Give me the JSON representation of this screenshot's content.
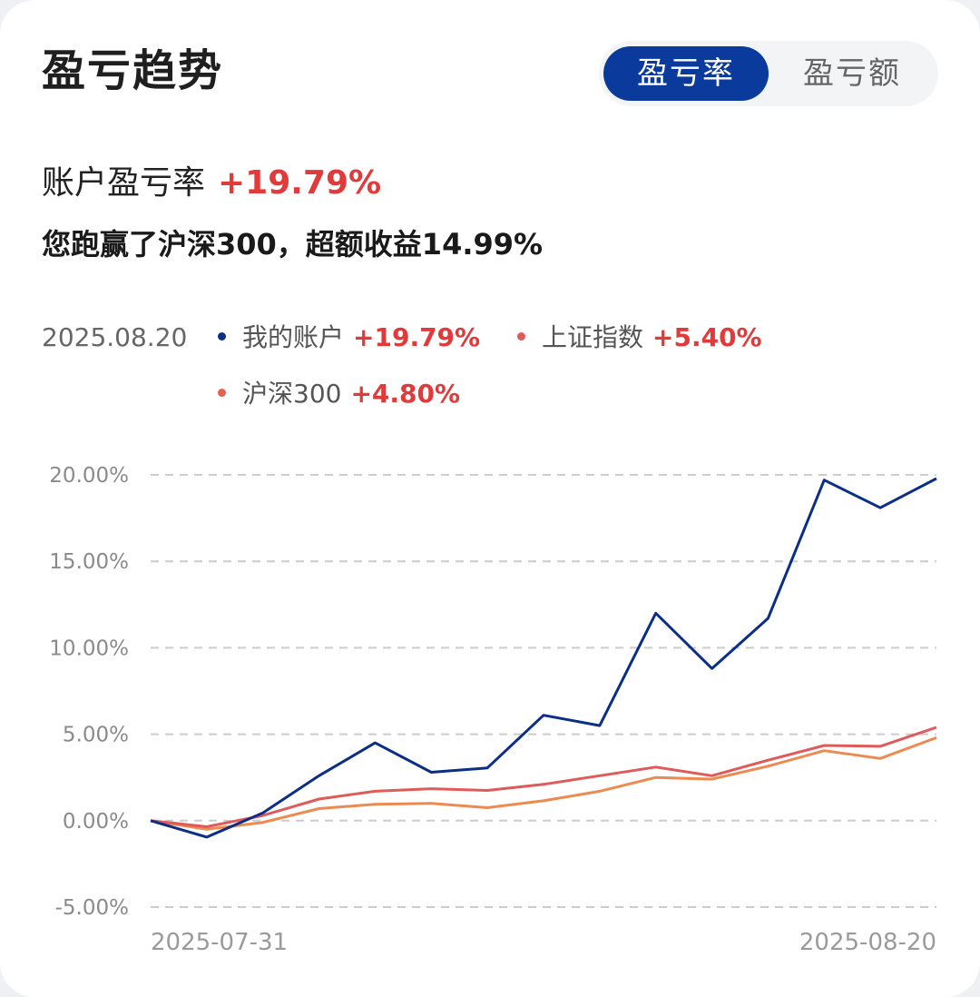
{
  "header": {
    "title": "盈亏趋势",
    "tabs": [
      {
        "label": "盈亏率",
        "active": true
      },
      {
        "label": "盈亏额",
        "active": false
      }
    ]
  },
  "summary": {
    "label": "账户盈亏率",
    "value": "+19.79%",
    "beat_text": "您跑赢了沪深300，超额收益14.99%"
  },
  "legend": {
    "date": "2025.08.20",
    "items": [
      {
        "name": "我的账户",
        "value": "+19.79%",
        "color": "#0b2f86"
      },
      {
        "name": "上证指数",
        "value": "+5.40%",
        "color": "#e05a5a"
      },
      {
        "name": "沪深300",
        "value": "+4.80%",
        "color": "#e5614f"
      }
    ]
  },
  "colors": {
    "accent": "#0a3a9c",
    "positive": "#e03a3a",
    "grid": "#cccccc"
  },
  "chart_data": {
    "type": "line",
    "y_tick_labels": [
      "20.00%",
      "15.00%",
      "10.00%",
      "5.00%",
      "0.00%",
      "-5.00%"
    ],
    "y_ticks": [
      20,
      15,
      10,
      5,
      0,
      -5
    ],
    "ylim": [
      -5,
      20
    ],
    "x_tick_labels": [
      "2025-07-31",
      "2025-08-20"
    ],
    "grid": true,
    "series": [
      {
        "name": "我的账户",
        "color": "#0b2f86",
        "values": [
          0.0,
          -0.95,
          0.45,
          2.6,
          4.5,
          2.8,
          3.05,
          6.1,
          5.5,
          12.0,
          8.8,
          11.7,
          19.7,
          18.1,
          19.79
        ]
      },
      {
        "name": "上证指数",
        "color": "#e05a5a",
        "values": [
          0.0,
          -0.35,
          0.3,
          1.25,
          1.7,
          1.85,
          1.75,
          2.1,
          2.6,
          3.1,
          2.6,
          3.5,
          4.35,
          4.3,
          5.4
        ]
      },
      {
        "name": "沪深300",
        "color": "#ec8a50",
        "values": [
          0.0,
          -0.5,
          -0.1,
          0.7,
          0.95,
          1.0,
          0.75,
          1.15,
          1.7,
          2.5,
          2.4,
          3.15,
          4.05,
          3.6,
          4.8
        ]
      }
    ]
  }
}
